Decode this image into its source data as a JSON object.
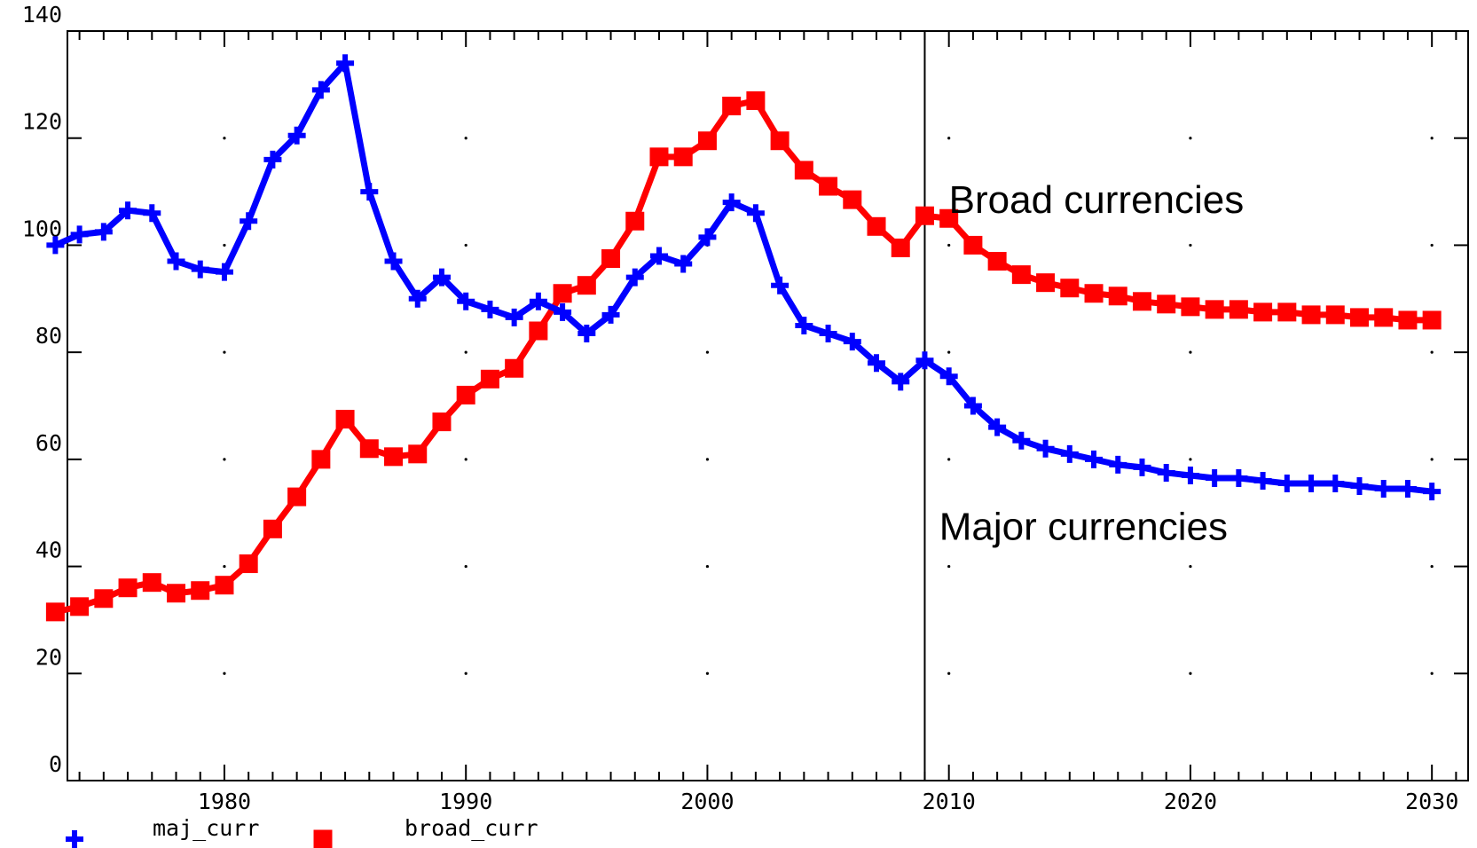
{
  "chart_data": {
    "type": "line",
    "xlim": [
      1973.5,
      2031.5
    ],
    "ylim": [
      0,
      140
    ],
    "x_ticks": [
      1980,
      1990,
      2000,
      2010,
      2020,
      2030
    ],
    "y_ticks": [
      0,
      20,
      40,
      60,
      80,
      100,
      120,
      140
    ],
    "grid": "dots",
    "vline_x": 2009,
    "x": [
      1973,
      1974,
      1975,
      1976,
      1977,
      1978,
      1979,
      1980,
      1981,
      1982,
      1983,
      1984,
      1985,
      1986,
      1987,
      1988,
      1989,
      1990,
      1991,
      1992,
      1993,
      1994,
      1995,
      1996,
      1997,
      1998,
      1999,
      2000,
      2001,
      2002,
      2003,
      2004,
      2005,
      2006,
      2007,
      2008,
      2009,
      2010,
      2011,
      2012,
      2013,
      2014,
      2015,
      2016,
      2017,
      2018,
      2019,
      2020,
      2021,
      2022,
      2023,
      2024,
      2025,
      2026,
      2027,
      2028,
      2029,
      2030
    ],
    "series": [
      {
        "name": "maj_curr",
        "color": "#0000ff",
        "marker": "plus",
        "values": [
          100,
          102,
          102.5,
          106.5,
          106,
          97,
          95.5,
          95,
          104.5,
          116,
          120.5,
          129,
          134,
          110,
          97,
          90,
          94,
          89.5,
          88,
          86.5,
          89.5,
          87.5,
          83.5,
          87,
          94,
          98,
          96.5,
          101.5,
          108,
          106,
          92.5,
          85,
          83.5,
          82,
          78,
          74.5,
          78.5,
          75.5,
          70,
          66,
          63.5,
          62,
          61,
          60,
          59,
          58.5,
          57.5,
          57,
          56.5,
          56.5,
          56,
          55.5,
          55.5,
          55.5,
          55,
          54.5,
          54.5,
          54
        ]
      },
      {
        "name": "broad_curr",
        "color": "#ff0000",
        "marker": "square",
        "values": [
          31.5,
          32.5,
          34,
          36,
          37,
          35,
          35.5,
          36.5,
          40.5,
          47,
          53,
          60,
          67.5,
          62,
          60.5,
          61,
          67,
          72,
          75,
          77,
          84,
          91,
          92.5,
          97.5,
          104.5,
          116.5,
          116.5,
          119.5,
          126,
          127,
          119.5,
          114,
          111,
          108.5,
          103.5,
          99.5,
          105.5,
          105,
          100,
          97,
          94.5,
          93,
          92,
          91,
          90.5,
          89.5,
          89,
          88.5,
          88,
          88,
          87.5,
          87.5,
          87,
          87,
          86.5,
          86.5,
          86,
          86
        ]
      }
    ],
    "annotations": [
      {
        "text": "Broad currencies",
        "x": 2010,
        "y": 106
      },
      {
        "text": "Major currencies",
        "x": 2009.6,
        "y": 45
      }
    ]
  }
}
